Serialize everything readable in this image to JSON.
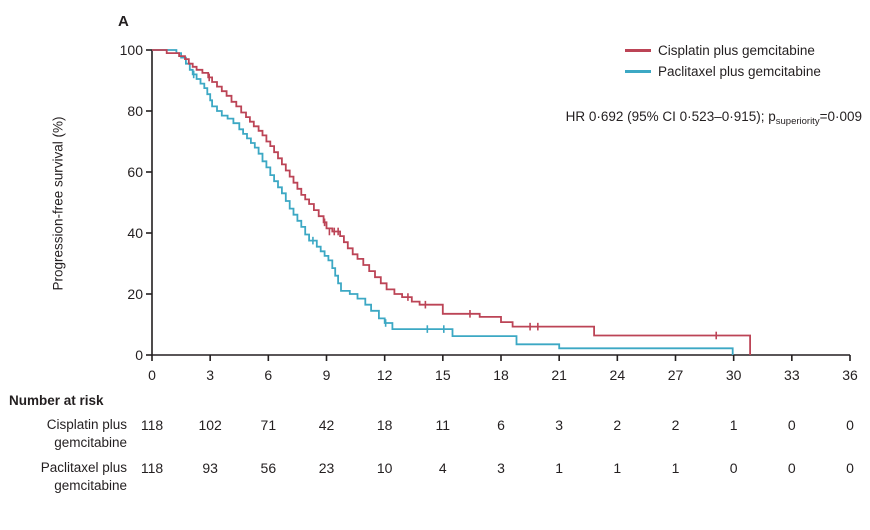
{
  "panel_label": "A",
  "colors": {
    "cisplatin": "#bc4456",
    "paclitaxel": "#3ca8c4",
    "axis": "#231f20"
  },
  "legend": [
    {
      "label": "Cisplatin plus gemcitabine",
      "color": "#bc4456"
    },
    {
      "label": "Paclitaxel plus gemcitabine",
      "color": "#3ca8c4"
    }
  ],
  "annotation": {
    "prefix": "HR 0·692 (95% CI 0·523–0·915); p",
    "subscript": "superiority",
    "suffix": "=0·009"
  },
  "chart_data": {
    "type": "line",
    "subtype": "kaplan-meier-step",
    "title": "",
    "xlabel": "",
    "ylabel": "Progression-free survival (%)",
    "xlim": [
      0,
      36
    ],
    "ylim": [
      0,
      100
    ],
    "xticks": [
      0,
      3,
      6,
      9,
      12,
      15,
      18,
      21,
      24,
      27,
      30,
      33,
      36
    ],
    "yticks": [
      0,
      20,
      40,
      60,
      80,
      100
    ],
    "grid": false,
    "legend_position": "top-right",
    "series": [
      {
        "name": "Cisplatin plus gemcitabine",
        "color": "#bc4456",
        "steps": [
          [
            0,
            100
          ],
          [
            0.76,
            99
          ],
          [
            1.4,
            98
          ],
          [
            1.7,
            97
          ],
          [
            1.9,
            95.5
          ],
          [
            2.1,
            94.5
          ],
          [
            2.3,
            93.5
          ],
          [
            2.6,
            92.5
          ],
          [
            2.9,
            91
          ],
          [
            3.1,
            89.5
          ],
          [
            3.35,
            88
          ],
          [
            3.6,
            86.5
          ],
          [
            3.85,
            85
          ],
          [
            4.1,
            83
          ],
          [
            4.35,
            81.5
          ],
          [
            4.6,
            79.5
          ],
          [
            4.85,
            78
          ],
          [
            5.05,
            76.5
          ],
          [
            5.25,
            75
          ],
          [
            5.5,
            73.5
          ],
          [
            5.7,
            72
          ],
          [
            5.9,
            70
          ],
          [
            6.1,
            68.5
          ],
          [
            6.3,
            66.5
          ],
          [
            6.5,
            64.5
          ],
          [
            6.7,
            62.5
          ],
          [
            6.9,
            60.5
          ],
          [
            7.1,
            58.5
          ],
          [
            7.3,
            56.5
          ],
          [
            7.5,
            54.5
          ],
          [
            7.7,
            52.5
          ],
          [
            7.9,
            51
          ],
          [
            8.1,
            49.5
          ],
          [
            8.35,
            47.5
          ],
          [
            8.6,
            45.5
          ],
          [
            8.85,
            43.5
          ],
          [
            9.0,
            41.5
          ],
          [
            9.3,
            40.5
          ],
          [
            9.7,
            39
          ],
          [
            9.9,
            37
          ],
          [
            10.1,
            35
          ],
          [
            10.35,
            33
          ],
          [
            10.6,
            31.5
          ],
          [
            10.9,
            29.5
          ],
          [
            11.2,
            27.5
          ],
          [
            11.5,
            25.5
          ],
          [
            11.8,
            23.5
          ],
          [
            12.1,
            21.5
          ],
          [
            12.5,
            20
          ],
          [
            12.9,
            19
          ],
          [
            13.4,
            17.5
          ],
          [
            13.8,
            16.5
          ],
          [
            15.0,
            13.5
          ],
          [
            16.9,
            12.5
          ],
          [
            18.0,
            10.8
          ],
          [
            18.6,
            9.3
          ],
          [
            22.8,
            6.4
          ],
          [
            30.85,
            0
          ]
        ],
        "censors": [
          [
            2.95,
            91
          ],
          [
            8.9,
            43.5
          ],
          [
            9.15,
            40.5
          ],
          [
            9.4,
            40.5
          ],
          [
            9.6,
            40.5
          ],
          [
            13.2,
            19
          ],
          [
            14.1,
            16.5
          ],
          [
            16.4,
            13.5
          ],
          [
            19.5,
            9.3
          ],
          [
            19.9,
            9.3
          ],
          [
            29.1,
            6.4
          ]
        ]
      },
      {
        "name": "Paclitaxel plus gemcitabine",
        "color": "#3ca8c4",
        "steps": [
          [
            0,
            100
          ],
          [
            1.26,
            99
          ],
          [
            1.5,
            97.5
          ],
          [
            1.75,
            95.5
          ],
          [
            1.95,
            93.5
          ],
          [
            2.1,
            92
          ],
          [
            2.3,
            90.5
          ],
          [
            2.5,
            89
          ],
          [
            2.7,
            87.5
          ],
          [
            2.85,
            85.5
          ],
          [
            3.0,
            83.5
          ],
          [
            3.1,
            81.5
          ],
          [
            3.35,
            80
          ],
          [
            3.6,
            78.5
          ],
          [
            3.9,
            77.5
          ],
          [
            4.2,
            76
          ],
          [
            4.5,
            74
          ],
          [
            4.7,
            72.5
          ],
          [
            4.9,
            71
          ],
          [
            5.1,
            69.5
          ],
          [
            5.3,
            68
          ],
          [
            5.5,
            66
          ],
          [
            5.7,
            63.5
          ],
          [
            5.9,
            61.5
          ],
          [
            6.1,
            59
          ],
          [
            6.3,
            57
          ],
          [
            6.5,
            55
          ],
          [
            6.7,
            53
          ],
          [
            6.9,
            50.5
          ],
          [
            7.1,
            48
          ],
          [
            7.3,
            46
          ],
          [
            7.5,
            44
          ],
          [
            7.7,
            42
          ],
          [
            7.9,
            39.5
          ],
          [
            8.1,
            37.5
          ],
          [
            8.5,
            35.5
          ],
          [
            8.7,
            34
          ],
          [
            8.9,
            32.5
          ],
          [
            9.1,
            31
          ],
          [
            9.3,
            28.5
          ],
          [
            9.45,
            26
          ],
          [
            9.6,
            23.5
          ],
          [
            9.75,
            21
          ],
          [
            10.2,
            20
          ],
          [
            10.6,
            18.5
          ],
          [
            11.0,
            16.5
          ],
          [
            11.3,
            14.5
          ],
          [
            11.7,
            12
          ],
          [
            12.0,
            10.5
          ],
          [
            12.4,
            8.5
          ],
          [
            15.5,
            6.2
          ],
          [
            18.8,
            3.5
          ],
          [
            21.0,
            2.2
          ],
          [
            29.95,
            0
          ]
        ],
        "censors": [
          [
            2.15,
            92
          ],
          [
            8.3,
            37.5
          ],
          [
            12.05,
            10.5
          ],
          [
            14.2,
            8.5
          ],
          [
            15.05,
            8.5
          ]
        ]
      }
    ]
  },
  "risk_table": {
    "title": "Number at risk",
    "rows": [
      {
        "label_line1": "Cisplatin plus",
        "label_line2": "gemcitabine",
        "counts": [
          118,
          102,
          71,
          42,
          18,
          11,
          6,
          3,
          2,
          2,
          1,
          0,
          0
        ]
      },
      {
        "label_line1": "Paclitaxel plus",
        "label_line2": "gemcitabine",
        "counts": [
          118,
          93,
          56,
          23,
          10,
          4,
          3,
          1,
          1,
          1,
          0,
          0,
          0
        ]
      }
    ]
  }
}
